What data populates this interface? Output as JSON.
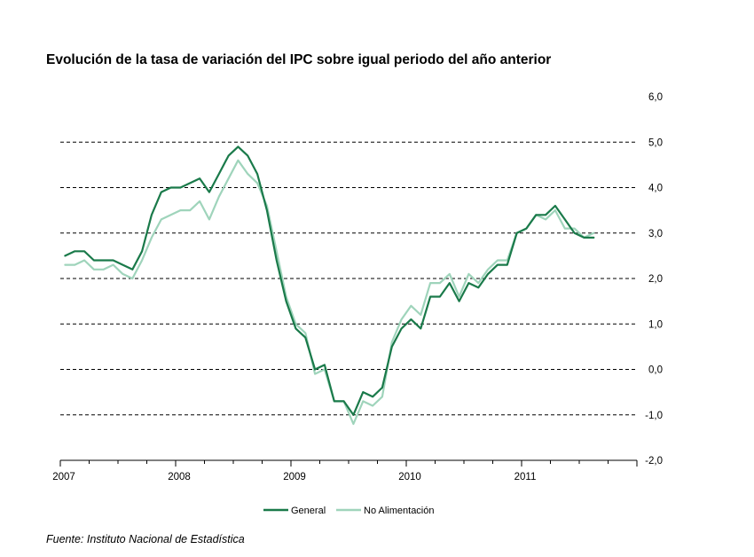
{
  "chart_data": {
    "type": "line",
    "title": "Evolución de la tasa de variación del IPC sobre igual  periodo del año anterior",
    "source": "Fuente: Instituto Nacional de Estadística",
    "x_labels": [
      "2007",
      "2008",
      "2009",
      "2010",
      "2011"
    ],
    "y_ticks": [
      "6,0",
      "5,0",
      "4,0",
      "3,0",
      "2,0",
      "1,0",
      "0,0",
      "-1,0",
      "-2,0"
    ],
    "ylim": [
      -2.0,
      6.0
    ],
    "grid": "dashed horizontal",
    "legend_position": "bottom",
    "x_start": "2007-01",
    "x_end": "2011-12",
    "series": [
      {
        "name": "General",
        "color": "#1a7a4a",
        "values": [
          2.5,
          2.6,
          2.6,
          2.4,
          2.4,
          2.4,
          2.3,
          2.2,
          2.6,
          3.4,
          3.9,
          4.0,
          4.0,
          4.1,
          4.2,
          3.9,
          4.3,
          4.7,
          4.9,
          4.7,
          4.3,
          3.5,
          2.4,
          1.5,
          0.9,
          0.7,
          0.0,
          0.1,
          -0.7,
          -0.7,
          -1.0,
          -0.5,
          -0.6,
          -0.4,
          0.5,
          0.9,
          1.1,
          0.9,
          1.6,
          1.6,
          1.9,
          1.5,
          1.9,
          1.8,
          2.1,
          2.3,
          2.3,
          3.0,
          3.1,
          3.4,
          3.4,
          3.6,
          3.3,
          3.0,
          2.9,
          2.9
        ]
      },
      {
        "name": "No Alimentación",
        "color": "#9fd4bb",
        "values": [
          2.3,
          2.3,
          2.4,
          2.2,
          2.2,
          2.3,
          2.1,
          2.0,
          2.4,
          2.9,
          3.3,
          3.4,
          3.5,
          3.5,
          3.7,
          3.3,
          3.8,
          4.2,
          4.6,
          4.3,
          4.1,
          3.6,
          2.6,
          1.6,
          1.0,
          0.8,
          -0.1,
          0.0,
          -0.7,
          -0.7,
          -1.2,
          -0.7,
          -0.8,
          -0.6,
          0.6,
          1.1,
          1.4,
          1.2,
          1.9,
          1.9,
          2.1,
          1.6,
          2.1,
          1.9,
          2.2,
          2.4,
          2.4,
          3.0,
          3.1,
          3.4,
          3.3,
          3.5,
          3.1,
          3.1,
          2.9,
          3.0
        ]
      }
    ]
  }
}
